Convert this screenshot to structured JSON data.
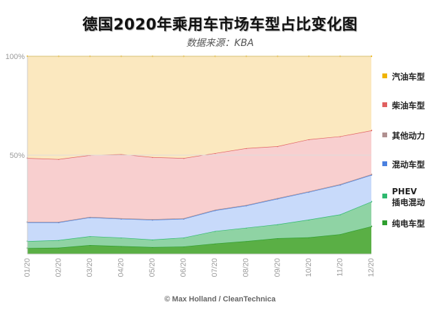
{
  "chart_data": {
    "type": "area",
    "stacked": true,
    "percent": true,
    "title": "德国2020年乘用车市场车型占比变化图",
    "subtitle": "数据来源：KBA",
    "credit": "© Max Holland / CleanTechnica",
    "categories": [
      "01/20",
      "02/20",
      "03/20",
      "04/20",
      "05/20",
      "06/20",
      "07/20",
      "08/20",
      "09/20",
      "10/20",
      "11/20",
      "12/20"
    ],
    "y_ticks": [
      {
        "value": 50,
        "label": "50%"
      },
      {
        "value": 100,
        "label": "100%"
      }
    ],
    "ylim": [
      0,
      100
    ],
    "series": [
      {
        "name": "纯电车型",
        "color": "#2e9e2e",
        "fill": "#5aaf45",
        "values": [
          3.0,
          3.2,
          4.5,
          4.0,
          3.5,
          3.8,
          5.3,
          6.5,
          8.0,
          8.4,
          10.0,
          14.0
        ]
      },
      {
        "name": "PHEV 插电混动",
        "legend_lines": [
          "PHEV",
          "插电混动"
        ],
        "color": "#2db86e",
        "fill": "#8fd3a4",
        "values": [
          3.5,
          3.8,
          4.5,
          4.3,
          3.8,
          4.5,
          6.3,
          6.8,
          7.0,
          9.0,
          10.0,
          12.5
        ]
      },
      {
        "name": "混动车型",
        "color": "#4a80e0",
        "fill": "#c8dafa",
        "values": [
          9.5,
          9.0,
          9.5,
          9.5,
          10.0,
          9.5,
          10.5,
          11.2,
          13.0,
          14.0,
          15.0,
          13.5
        ]
      },
      {
        "name": "其他动力",
        "color": "#b09090",
        "fill": "#d8c8c8",
        "values": [
          0.3,
          0.3,
          0.3,
          0.3,
          0.3,
          0.3,
          0.3,
          0.3,
          0.3,
          0.3,
          0.3,
          0.3
        ]
      },
      {
        "name": "柴油车型",
        "color": "#e06060",
        "fill": "#f8cfcf",
        "values": [
          32.2,
          31.7,
          31.2,
          32.4,
          31.4,
          30.4,
          28.6,
          28.7,
          26.2,
          26.3,
          24.2,
          22.2
        ]
      },
      {
        "name": "汽油车型",
        "color": "#f0b400",
        "fill": "#fbe8bf",
        "values": [
          51.5,
          52.0,
          50.0,
          49.5,
          51.0,
          51.5,
          49.0,
          46.5,
          45.5,
          42.0,
          40.5,
          37.5
        ]
      }
    ],
    "legend_order": [
      "汽油车型",
      "柴油车型",
      "其他动力",
      "混动车型",
      "PHEV 插电混动",
      "纯电车型"
    ]
  }
}
